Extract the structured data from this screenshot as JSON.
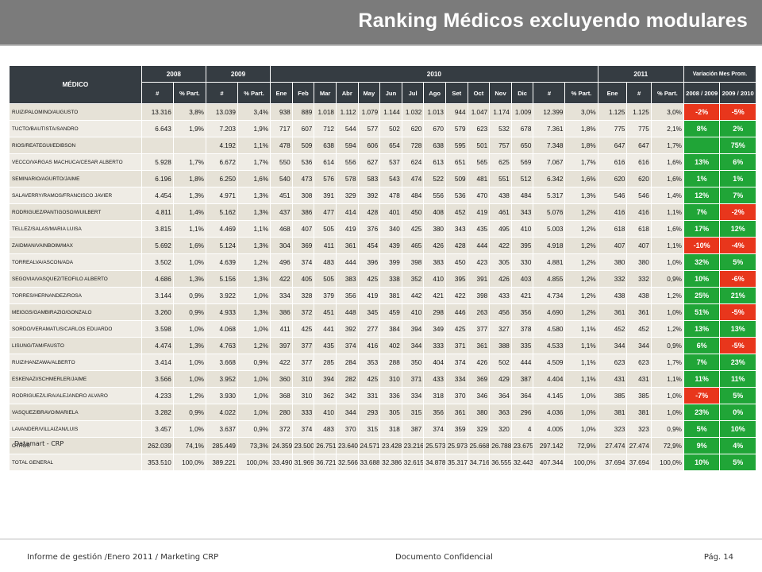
{
  "title": "Ranking Médicos excluyendo modulares",
  "table": {
    "head_medico": "MÉDICO",
    "years": [
      "2008",
      "2009",
      "2010",
      "2011"
    ],
    "variation": "Variación Mes Prom.",
    "sub_2008": [
      "#",
      "% Part."
    ],
    "sub_2009": [
      "#",
      "% Part."
    ],
    "months": [
      "Ene",
      "Feb",
      "Mar",
      "Abr",
      "May",
      "Jun",
      "Jul",
      "Ago",
      "Set",
      "Oct",
      "Nov",
      "Dic"
    ],
    "sub_2010_tail": [
      "#",
      "% Part."
    ],
    "sub_2011": [
      "Ene",
      "#",
      "% Part."
    ],
    "var_cols": [
      "2008 / 2009",
      "2009 / 2010"
    ],
    "rows": [
      {
        "name": "RUIZ/PALOMINO/AUGUSTO",
        "n08": "13.316",
        "p08": "3,8%",
        "n09": "13.039",
        "p09": "3,4%",
        "m": [
          "938",
          "889",
          "1.018",
          "1.112",
          "1.079",
          "1.144",
          "1.032",
          "1.013",
          "944",
          "1.047",
          "1.174",
          "1.009"
        ],
        "n10": "12.399",
        "p10": "3,0%",
        "e11": "1.125",
        "n11": "1.125",
        "p11": "3,0%",
        "v1": "-2%",
        "v1s": "neg",
        "v2": "-5%",
        "v2s": "neg"
      },
      {
        "name": "TUCTO/BAUTISTA/SANDRO",
        "n08": "6.643",
        "p08": "1,9%",
        "n09": "7.203",
        "p09": "1,9%",
        "m": [
          "717",
          "607",
          "712",
          "544",
          "577",
          "502",
          "620",
          "670",
          "579",
          "623",
          "532",
          "678"
        ],
        "n10": "7.361",
        "p10": "1,8%",
        "e11": "775",
        "n11": "775",
        "p11": "2,1%",
        "v1": "8%",
        "v1s": "pos",
        "v2": "2%",
        "v2s": "pos"
      },
      {
        "name": "RIOS/REATEGUI/EDIBSON",
        "n08": "",
        "p08": "",
        "n09": "4.192",
        "p09": "1,1%",
        "m": [
          "478",
          "509",
          "638",
          "594",
          "606",
          "654",
          "728",
          "638",
          "595",
          "501",
          "757",
          "650"
        ],
        "n10": "7.348",
        "p10": "1,8%",
        "e11": "647",
        "n11": "647",
        "p11": "1,7%",
        "v1": "",
        "v1s": "pos",
        "v2": "75%",
        "v2s": "pos"
      },
      {
        "name": "VECCO/VARGAS MACHUCA/CESAR ALBERTO",
        "n08": "5.928",
        "p08": "1,7%",
        "n09": "6.672",
        "p09": "1,7%",
        "m": [
          "550",
          "536",
          "614",
          "556",
          "627",
          "537",
          "624",
          "613",
          "651",
          "565",
          "625",
          "569"
        ],
        "n10": "7.067",
        "p10": "1,7%",
        "e11": "616",
        "n11": "616",
        "p11": "1,6%",
        "v1": "13%",
        "v1s": "pos",
        "v2": "6%",
        "v2s": "pos"
      },
      {
        "name": "SEMINARIO/AGURTO/JAIME",
        "n08": "6.196",
        "p08": "1,8%",
        "n09": "6.250",
        "p09": "1,6%",
        "m": [
          "540",
          "473",
          "576",
          "578",
          "583",
          "543",
          "474",
          "522",
          "509",
          "481",
          "551",
          "512"
        ],
        "n10": "6.342",
        "p10": "1,6%",
        "e11": "620",
        "n11": "620",
        "p11": "1,6%",
        "v1": "1%",
        "v1s": "pos",
        "v2": "1%",
        "v2s": "pos"
      },
      {
        "name": "SALAVERRY/RAMOS/FRANCISCO JAVIER",
        "n08": "4.454",
        "p08": "1,3%",
        "n09": "4.971",
        "p09": "1,3%",
        "m": [
          "451",
          "308",
          "391",
          "329",
          "392",
          "478",
          "484",
          "556",
          "536",
          "470",
          "438",
          "484"
        ],
        "n10": "5.317",
        "p10": "1,3%",
        "e11": "546",
        "n11": "546",
        "p11": "1,4%",
        "v1": "12%",
        "v1s": "pos",
        "v2": "7%",
        "v2s": "pos"
      },
      {
        "name": "RODRIGUEZ/PANTIGOSO/WUILBERT",
        "n08": "4.811",
        "p08": "1,4%",
        "n09": "5.162",
        "p09": "1,3%",
        "m": [
          "437",
          "386",
          "477",
          "414",
          "428",
          "401",
          "450",
          "408",
          "452",
          "419",
          "461",
          "343"
        ],
        "n10": "5.076",
        "p10": "1,2%",
        "e11": "416",
        "n11": "416",
        "p11": "1,1%",
        "v1": "7%",
        "v1s": "pos",
        "v2": "-2%",
        "v2s": "neg"
      },
      {
        "name": "TELLEZ/SALAS/MARIA LUISA",
        "n08": "3.815",
        "p08": "1,1%",
        "n09": "4.469",
        "p09": "1,1%",
        "m": [
          "468",
          "407",
          "505",
          "419",
          "376",
          "340",
          "425",
          "380",
          "343",
          "435",
          "495",
          "410"
        ],
        "n10": "5.003",
        "p10": "1,2%",
        "e11": "618",
        "n11": "618",
        "p11": "1,6%",
        "v1": "17%",
        "v1s": "pos",
        "v2": "12%",
        "v2s": "pos"
      },
      {
        "name": "ZAIDMAN/VAINBOIM/MAX",
        "n08": "5.692",
        "p08": "1,6%",
        "n09": "5.124",
        "p09": "1,3%",
        "m": [
          "304",
          "369",
          "411",
          "361",
          "454",
          "439",
          "465",
          "426",
          "428",
          "444",
          "422",
          "395"
        ],
        "n10": "4.918",
        "p10": "1,2%",
        "e11": "407",
        "n11": "407",
        "p11": "1,1%",
        "v1": "-10%",
        "v1s": "neg",
        "v2": "-4%",
        "v2s": "neg"
      },
      {
        "name": "TORREALVA/ASCON/ADA",
        "n08": "3.502",
        "p08": "1,0%",
        "n09": "4.639",
        "p09": "1,2%",
        "m": [
          "496",
          "374",
          "483",
          "444",
          "396",
          "399",
          "398",
          "383",
          "450",
          "423",
          "305",
          "330"
        ],
        "n10": "4.881",
        "p10": "1,2%",
        "e11": "380",
        "n11": "380",
        "p11": "1,0%",
        "v1": "32%",
        "v1s": "pos",
        "v2": "5%",
        "v2s": "pos"
      },
      {
        "name": "SEGOVIA/VASQUEZ/TEOFILO ALBERTO",
        "n08": "4.686",
        "p08": "1,3%",
        "n09": "5.156",
        "p09": "1,3%",
        "m": [
          "422",
          "405",
          "505",
          "383",
          "425",
          "338",
          "352",
          "410",
          "395",
          "391",
          "426",
          "403"
        ],
        "n10": "4.855",
        "p10": "1,2%",
        "e11": "332",
        "n11": "332",
        "p11": "0,9%",
        "v1": "10%",
        "v1s": "pos",
        "v2": "-6%",
        "v2s": "neg"
      },
      {
        "name": "TORRES/HERNANDEZ/ROSA",
        "n08": "3.144",
        "p08": "0,9%",
        "n09": "3.922",
        "p09": "1,0%",
        "m": [
          "334",
          "328",
          "379",
          "356",
          "419",
          "381",
          "442",
          "421",
          "422",
          "398",
          "433",
          "421"
        ],
        "n10": "4.734",
        "p10": "1,2%",
        "e11": "438",
        "n11": "438",
        "p11": "1,2%",
        "v1": "25%",
        "v1s": "pos",
        "v2": "21%",
        "v2s": "pos"
      },
      {
        "name": "MEIGGS/GAMBIRAZIO/GONZALO",
        "n08": "3.260",
        "p08": "0,9%",
        "n09": "4.933",
        "p09": "1,3%",
        "m": [
          "386",
          "372",
          "451",
          "448",
          "345",
          "459",
          "410",
          "298",
          "446",
          "263",
          "456",
          "356"
        ],
        "n10": "4.690",
        "p10": "1,2%",
        "e11": "361",
        "n11": "361",
        "p11": "1,0%",
        "v1": "51%",
        "v1s": "pos",
        "v2": "-5%",
        "v2s": "neg"
      },
      {
        "name": "SORDO/VERAMATUS/CARLOS EDUARDO",
        "n08": "3.598",
        "p08": "1,0%",
        "n09": "4.068",
        "p09": "1,0%",
        "m": [
          "411",
          "425",
          "441",
          "392",
          "277",
          "384",
          "394",
          "349",
          "425",
          "377",
          "327",
          "378"
        ],
        "n10": "4.580",
        "p10": "1,1%",
        "e11": "452",
        "n11": "452",
        "p11": "1,2%",
        "v1": "13%",
        "v1s": "pos",
        "v2": "13%",
        "v2s": "pos"
      },
      {
        "name": "LISUNG/TAM/FAUSTO",
        "n08": "4.474",
        "p08": "1,3%",
        "n09": "4.763",
        "p09": "1,2%",
        "m": [
          "397",
          "377",
          "435",
          "374",
          "416",
          "402",
          "344",
          "333",
          "371",
          "361",
          "388",
          "335"
        ],
        "n10": "4.533",
        "p10": "1,1%",
        "e11": "344",
        "n11": "344",
        "p11": "0,9%",
        "v1": "6%",
        "v1s": "pos",
        "v2": "-5%",
        "v2s": "neg"
      },
      {
        "name": "RUIZ/HANZAWA/ALBERTO",
        "n08": "3.414",
        "p08": "1,0%",
        "n09": "3.668",
        "p09": "0,9%",
        "m": [
          "422",
          "377",
          "285",
          "284",
          "353",
          "288",
          "350",
          "404",
          "374",
          "426",
          "502",
          "444"
        ],
        "n10": "4.509",
        "p10": "1,1%",
        "e11": "623",
        "n11": "623",
        "p11": "1,7%",
        "v1": "7%",
        "v1s": "pos",
        "v2": "23%",
        "v2s": "pos"
      },
      {
        "name": "ESKENAZI/SCHMERLER/JAIME",
        "n08": "3.566",
        "p08": "1,0%",
        "n09": "3.952",
        "p09": "1,0%",
        "m": [
          "360",
          "310",
          "394",
          "282",
          "425",
          "310",
          "371",
          "433",
          "334",
          "369",
          "429",
          "387"
        ],
        "n10": "4.404",
        "p10": "1,1%",
        "e11": "431",
        "n11": "431",
        "p11": "1,1%",
        "v1": "11%",
        "v1s": "pos",
        "v2": "11%",
        "v2s": "pos"
      },
      {
        "name": "RODRIGUEZ/LIRA/ALEJANDRO ALVARO",
        "n08": "4.233",
        "p08": "1,2%",
        "n09": "3.930",
        "p09": "1,0%",
        "m": [
          "368",
          "310",
          "362",
          "342",
          "331",
          "336",
          "334",
          "318",
          "370",
          "346",
          "364",
          "364"
        ],
        "n10": "4.145",
        "p10": "1,0%",
        "e11": "385",
        "n11": "385",
        "p11": "1,0%",
        "v1": "-7%",
        "v1s": "neg",
        "v2": "5%",
        "v2s": "pos"
      },
      {
        "name": "VASQUEZ/BRAVO/MARIELA",
        "n08": "3.282",
        "p08": "0,9%",
        "n09": "4.022",
        "p09": "1,0%",
        "m": [
          "280",
          "333",
          "410",
          "344",
          "293",
          "305",
          "315",
          "356",
          "361",
          "380",
          "363",
          "296"
        ],
        "n10": "4.036",
        "p10": "1,0%",
        "e11": "381",
        "n11": "381",
        "p11": "1,0%",
        "v1": "23%",
        "v1s": "pos",
        "v2": "0%",
        "v2s": "pos"
      },
      {
        "name": "LAVANDER/VILLAIZAN/LUIS",
        "n08": "3.457",
        "p08": "1,0%",
        "n09": "3.637",
        "p09": "0,9%",
        "m": [
          "372",
          "374",
          "483",
          "370",
          "315",
          "318",
          "387",
          "374",
          "359",
          "329",
          "320",
          "4"
        ],
        "n10": "4.005",
        "p10": "1,0%",
        "e11": "323",
        "n11": "323",
        "p11": "0,9%",
        "v1": "5%",
        "v1s": "pos",
        "v2": "10%",
        "v2s": "pos"
      },
      {
        "name": "OTROS",
        "n08": "262.039",
        "p08": "74,1%",
        "n09": "285.449",
        "p09": "73,3%",
        "m": [
          "24.359",
          "23.500",
          "26.751",
          "23.640",
          "24.571",
          "23.428",
          "23.216",
          "25.573",
          "25.973",
          "25.668",
          "26.788",
          "23.675"
        ],
        "n10": "297.142",
        "p10": "72,9%",
        "e11": "27.474",
        "n11": "27.474",
        "p11": "72,9%",
        "v1": "9%",
        "v1s": "pos",
        "v2": "4%",
        "v2s": "pos"
      },
      {
        "name": "TOTAL GENERAL",
        "n08": "353.510",
        "p08": "100,0%",
        "n09": "389.221",
        "p09": "100,0%",
        "m": [
          "33.490",
          "31.969",
          "36.721",
          "32.566",
          "33.688",
          "32.386",
          "32.615",
          "34.878",
          "35.317",
          "34.716",
          "36.555",
          "32.443"
        ],
        "n10": "407.344",
        "p10": "100,0%",
        "e11": "37.694",
        "n11": "37.694",
        "p11": "100,0%",
        "v1": "10%",
        "v1s": "pos",
        "v2": "5%",
        "v2s": "pos"
      }
    ]
  },
  "source": "Datamart - CRP",
  "footer": {
    "left": "Informe de gestión /Enero 2011 / Marketing CRP",
    "center": "Documento Confidencial",
    "right": "Pág. 14"
  },
  "colors": {
    "header_bg": "#353c42",
    "row_bg": "#e6e2d7",
    "positive": "#20a537",
    "negative": "#e8361c",
    "banner": "#7b7b7b"
  }
}
